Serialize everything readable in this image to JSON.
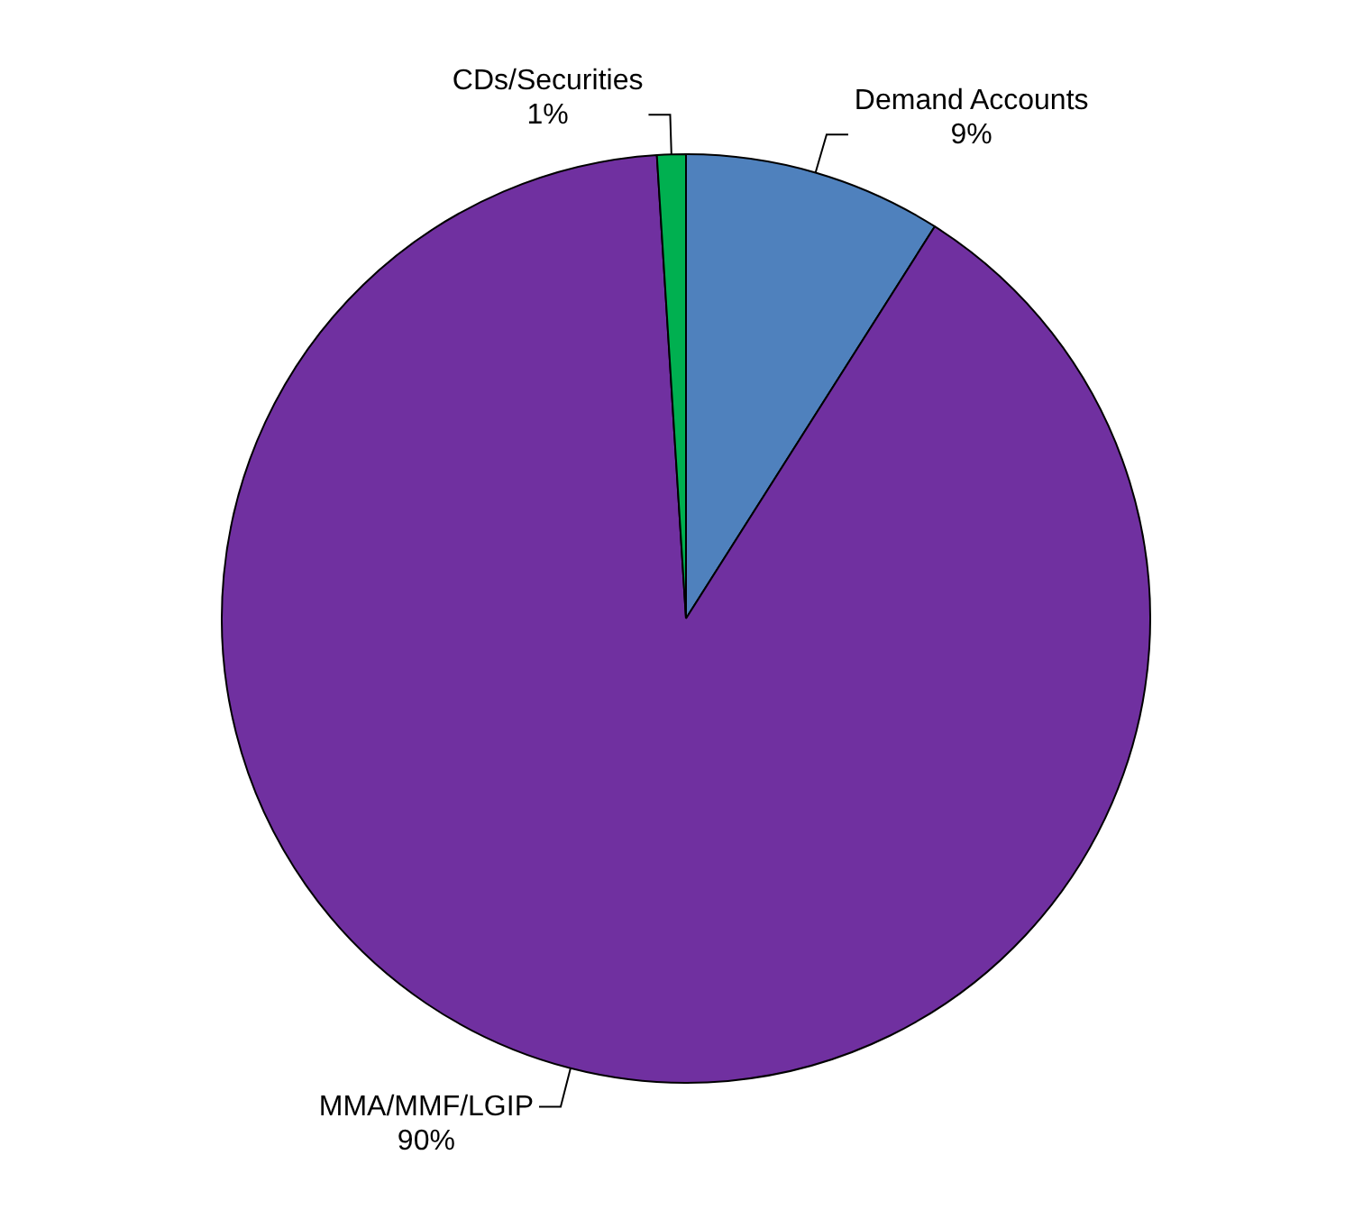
{
  "chart_data": {
    "type": "pie",
    "categories": [
      "Demand Accounts",
      "MMA/MMF/LGIP",
      "CDs/Securities"
    ],
    "values": [
      9,
      90,
      1
    ],
    "colors": [
      "#4f81bd",
      "#7030a0",
      "#00b050"
    ],
    "value_labels": [
      "9%",
      "90%",
      "1%"
    ],
    "legend": false
  }
}
